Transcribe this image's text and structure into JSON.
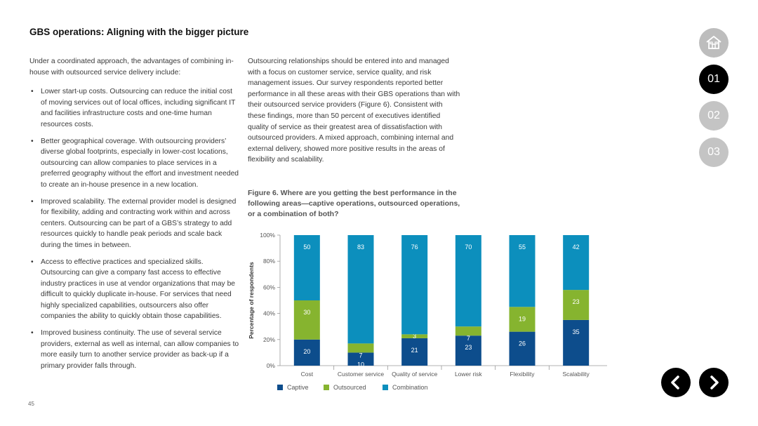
{
  "page": {
    "title": "GBS operations: Aligning with the bigger picture",
    "page_number": "45"
  },
  "left_column": {
    "intro": "Under a coordinated approach, the advantages of combining in-house with outsourced service delivery include:",
    "bullets": [
      "Lower start-up costs. Outsourcing can reduce the initial cost of moving services out of local offices, including significant IT and facilities infrastructure costs and one-time human resources costs.",
      "Better geographical coverage. With outsourcing providers’ diverse global footprints, especially in lower-cost locations, outsourcing can allow companies to place services in a preferred geography without the effort and investment needed to create an in-house presence in a new location.",
      "Improved scalability. The external provider model is designed for flexibility, adding and contracting work within and across centers. Outsourcing can be part of a GBS’s strategy to add resources quickly to handle peak periods and scale back during the times in between.",
      "Access to effective practices and specialized skills. Outsourcing can give a company fast access to effective industry practices in use at vendor organizations that may be difficult to quickly duplicate in-house. For services that need highly specialized capabilities, outsourcers also offer companies the ability to quickly obtain those capabilities.",
      "Improved business continuity. The use of several service providers, external as well as internal, can allow companies to more easily turn to another service provider as back-up if a primary provider falls through."
    ]
  },
  "mid_column": {
    "paragraph": "Outsourcing relationships should be entered into and managed with a focus on customer service, service quality, and risk management issues. Our survey respondents reported better performance in all these areas with their GBS operations than with their outsourced service providers (Figure 6). Consistent with these findings, more than 50 percent of executives identified quality of service as their greatest area of dissatisfaction with outsourced providers. A mixed approach, combining internal and external delivery, showed more positive results in the areas of flexibility and scalability.",
    "figure_title": "Figure 6. Where are you getting the best performance in the following areas—captive operations, outsourced operations, or a combination of both?"
  },
  "nav": {
    "home_icon": "house-icon",
    "pages": [
      "01",
      "02",
      "03"
    ],
    "active_page": "01",
    "prev_icon": "chevron-left-icon",
    "next_icon": "chevron-right-icon"
  },
  "chart_data": {
    "type": "bar",
    "stacked": true,
    "title": "",
    "xlabel": "",
    "ylabel": "Percentage of respondents",
    "ylim": [
      0,
      100
    ],
    "yticks": [
      "0%",
      "20%",
      "40%",
      "60%",
      "80%",
      "100%"
    ],
    "categories": [
      "Cost",
      "Customer service",
      "Quality of service",
      "Lower risk",
      "Flexibility",
      "Scalability"
    ],
    "series": [
      {
        "name": "Captive",
        "color": "#0d4d8c",
        "values": [
          20,
          10,
          21,
          23,
          26,
          35
        ]
      },
      {
        "name": "Outsourced",
        "color": "#86b42f",
        "values": [
          30,
          7,
          3,
          7,
          19,
          23
        ]
      },
      {
        "name": "Combination",
        "color": "#0c8fbd",
        "values": [
          50,
          83,
          76,
          70,
          55,
          42
        ]
      }
    ],
    "legend_position": "bottom-left"
  }
}
